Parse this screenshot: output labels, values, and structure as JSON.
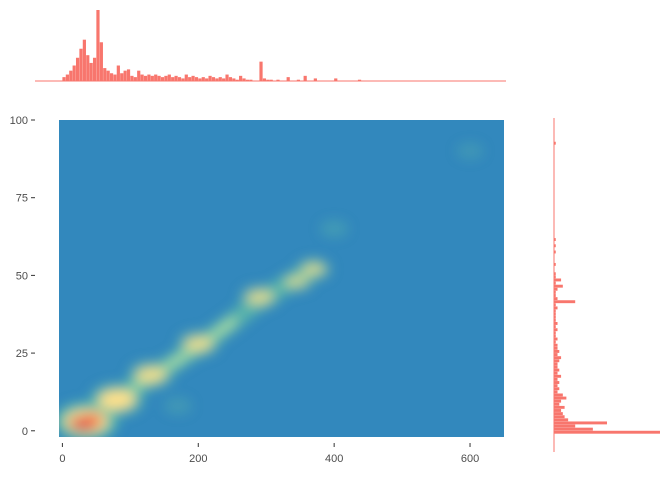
{
  "chart_data": {
    "type": "heatmap",
    "title": "",
    "xlabel": "",
    "ylabel": "",
    "xlim": [
      -5,
      650
    ],
    "ylim": [
      -2,
      100
    ],
    "x_ticks": [
      {
        "value": 0,
        "label": "0"
      },
      {
        "value": 200,
        "label": "200"
      },
      {
        "value": 400,
        "label": "400"
      },
      {
        "value": 600,
        "label": "600"
      }
    ],
    "y_ticks": [
      {
        "value": 0,
        "label": "0"
      },
      {
        "value": 25,
        "label": "25"
      },
      {
        "value": 50,
        "label": "50"
      },
      {
        "value": 75,
        "label": "75"
      },
      {
        "value": 100,
        "label": "100"
      }
    ],
    "grid": false,
    "legend": "none",
    "colors": {
      "background_density": "#3288bd",
      "low": "#66c2a5",
      "mid": "#fee08b",
      "high": "#d53e4f",
      "histogram": "#f8766d",
      "axis": "#333333"
    },
    "density_peaks": [
      {
        "x": 35,
        "y": 3,
        "weight": 1.0
      },
      {
        "x": 80,
        "y": 10,
        "weight": 0.5
      },
      {
        "x": 130,
        "y": 18,
        "weight": 0.35
      },
      {
        "x": 200,
        "y": 28,
        "weight": 0.3
      },
      {
        "x": 290,
        "y": 43,
        "weight": 0.25
      },
      {
        "x": 345,
        "y": 48,
        "weight": 0.15
      },
      {
        "x": 370,
        "y": 52,
        "weight": 0.18
      },
      {
        "x": 400,
        "y": 65,
        "weight": 0.05
      },
      {
        "x": 170,
        "y": 8,
        "weight": 0.04
      },
      {
        "x": 600,
        "y": 90,
        "weight": 0.02
      }
    ],
    "x_histogram": {
      "bin_width": 5,
      "x_start": -5,
      "counts": [
        0,
        3,
        5,
        8,
        12,
        18,
        25,
        32,
        20,
        14,
        18,
        55,
        30,
        10,
        8,
        6,
        5,
        12,
        6,
        8,
        9,
        4,
        3,
        8,
        5,
        4,
        5,
        4,
        5,
        4,
        3,
        4,
        5,
        3,
        4,
        3,
        2,
        5,
        3,
        4,
        3,
        2,
        3,
        2,
        4,
        3,
        2,
        3,
        2,
        5,
        3,
        2,
        1,
        4,
        2,
        1,
        1,
        0,
        0,
        15,
        2,
        1,
        1,
        0,
        1,
        0,
        0,
        3,
        0,
        0,
        1,
        0,
        4,
        0,
        0,
        2,
        0,
        0,
        0,
        0,
        0,
        2,
        0,
        0,
        0,
        0,
        0,
        0,
        1,
        0,
        0,
        0,
        0,
        0,
        0,
        0,
        0,
        0,
        0,
        0,
        0,
        0,
        0,
        0,
        0,
        0,
        0,
        0,
        0,
        0,
        0,
        0,
        0,
        0,
        0,
        0,
        0,
        0,
        0,
        0,
        0,
        0,
        0,
        0,
        0,
        0,
        0,
        0,
        0,
        0,
        0
      ]
    },
    "y_histogram": {
      "bin_width": 1,
      "y_start": -2,
      "counts": [
        0,
        60,
        22,
        12,
        30,
        8,
        6,
        5,
        4,
        6,
        3,
        4,
        7,
        5,
        2,
        3,
        2,
        3,
        2,
        4,
        2,
        3,
        2,
        2,
        3,
        4,
        2,
        3,
        2,
        2,
        1,
        2,
        1,
        1,
        2,
        1,
        2,
        1,
        1,
        1,
        1,
        2,
        1,
        12,
        2,
        1,
        1,
        2,
        5,
        1,
        4,
        1,
        1,
        0,
        0,
        1,
        0,
        0,
        0,
        1,
        0,
        1,
        0,
        1,
        0,
        0,
        0,
        0,
        0,
        0,
        0,
        0,
        0,
        0,
        0,
        0,
        0,
        0,
        0,
        0,
        0,
        0,
        0,
        0,
        0,
        0,
        0,
        0,
        0,
        0,
        0,
        0,
        0,
        0,
        1,
        0,
        0,
        0,
        0,
        0,
        0,
        0
      ]
    }
  }
}
